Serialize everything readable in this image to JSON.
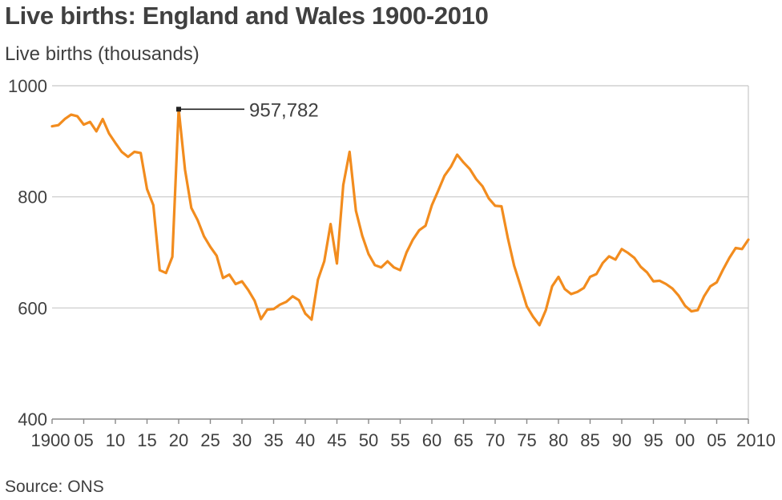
{
  "chart_data": {
    "type": "line",
    "title": "Live births: England and Wales 1900-2010",
    "ylabel": "Live births (thousands)",
    "xlabel": "",
    "source": "Source: ONS",
    "xlim": [
      1900,
      2010
    ],
    "ylim": [
      400,
      1000
    ],
    "y_ticks": [
      400,
      600,
      800,
      1000
    ],
    "y_tick_labels": [
      "400",
      "600",
      "800",
      "1000"
    ],
    "x_ticks": [
      1900,
      1905,
      1910,
      1915,
      1920,
      1925,
      1930,
      1935,
      1940,
      1945,
      1950,
      1955,
      1960,
      1965,
      1970,
      1975,
      1980,
      1985,
      1990,
      1995,
      2000,
      2005,
      2010
    ],
    "x_tick_labels": [
      "1900",
      "05",
      "10",
      "15",
      "20",
      "25",
      "30",
      "35",
      "40",
      "45",
      "50",
      "55",
      "60",
      "65",
      "70",
      "75",
      "80",
      "85",
      "90",
      "95",
      "00",
      "05",
      "2010"
    ],
    "grid": "horizontal",
    "color": "#f28c1e",
    "annotation": {
      "x": 1920,
      "y": 957.782,
      "label": "957,782"
    },
    "x": [
      1900,
      1901,
      1902,
      1903,
      1904,
      1905,
      1906,
      1907,
      1908,
      1909,
      1910,
      1911,
      1912,
      1913,
      1914,
      1915,
      1916,
      1917,
      1918,
      1919,
      1920,
      1921,
      1922,
      1923,
      1924,
      1925,
      1926,
      1927,
      1928,
      1929,
      1930,
      1931,
      1932,
      1933,
      1934,
      1935,
      1936,
      1937,
      1938,
      1939,
      1940,
      1941,
      1942,
      1943,
      1944,
      1945,
      1946,
      1947,
      1948,
      1949,
      1950,
      1951,
      1952,
      1953,
      1954,
      1955,
      1956,
      1957,
      1958,
      1959,
      1960,
      1961,
      1962,
      1963,
      1964,
      1965,
      1966,
      1967,
      1968,
      1969,
      1970,
      1971,
      1972,
      1973,
      1974,
      1975,
      1976,
      1977,
      1978,
      1979,
      1980,
      1981,
      1982,
      1983,
      1984,
      1985,
      1986,
      1987,
      1988,
      1989,
      1990,
      1991,
      1992,
      1993,
      1994,
      1995,
      1996,
      1997,
      1998,
      1999,
      2000,
      2001,
      2002,
      2003,
      2004,
      2005,
      2006,
      2007,
      2008,
      2009,
      2010
    ],
    "y": [
      927,
      929,
      940,
      948,
      945,
      930,
      935,
      918,
      940,
      914,
      897,
      881,
      872,
      881,
      879,
      814,
      785,
      668,
      663,
      692,
      958,
      849,
      780,
      758,
      729,
      710,
      694,
      654,
      660,
      643,
      648,
      632,
      613,
      580,
      597,
      598,
      606,
      611,
      621,
      614,
      590,
      579,
      651,
      684,
      751,
      680,
      821,
      881,
      775,
      730,
      697,
      677,
      673,
      684,
      673,
      668,
      700,
      723,
      740,
      748,
      785,
      811,
      838,
      854,
      876,
      862,
      850,
      832,
      819,
      797,
      784,
      783,
      726,
      676,
      640,
      603,
      584,
      569,
      596,
      639,
      656,
      634,
      625,
      629,
      636,
      656,
      661,
      681,
      693,
      687,
      706,
      699,
      690,
      674,
      664,
      648,
      649,
      643,
      635,
      622,
      604,
      594,
      596,
      621,
      639,
      646,
      669,
      690,
      708,
      706,
      723
    ]
  }
}
